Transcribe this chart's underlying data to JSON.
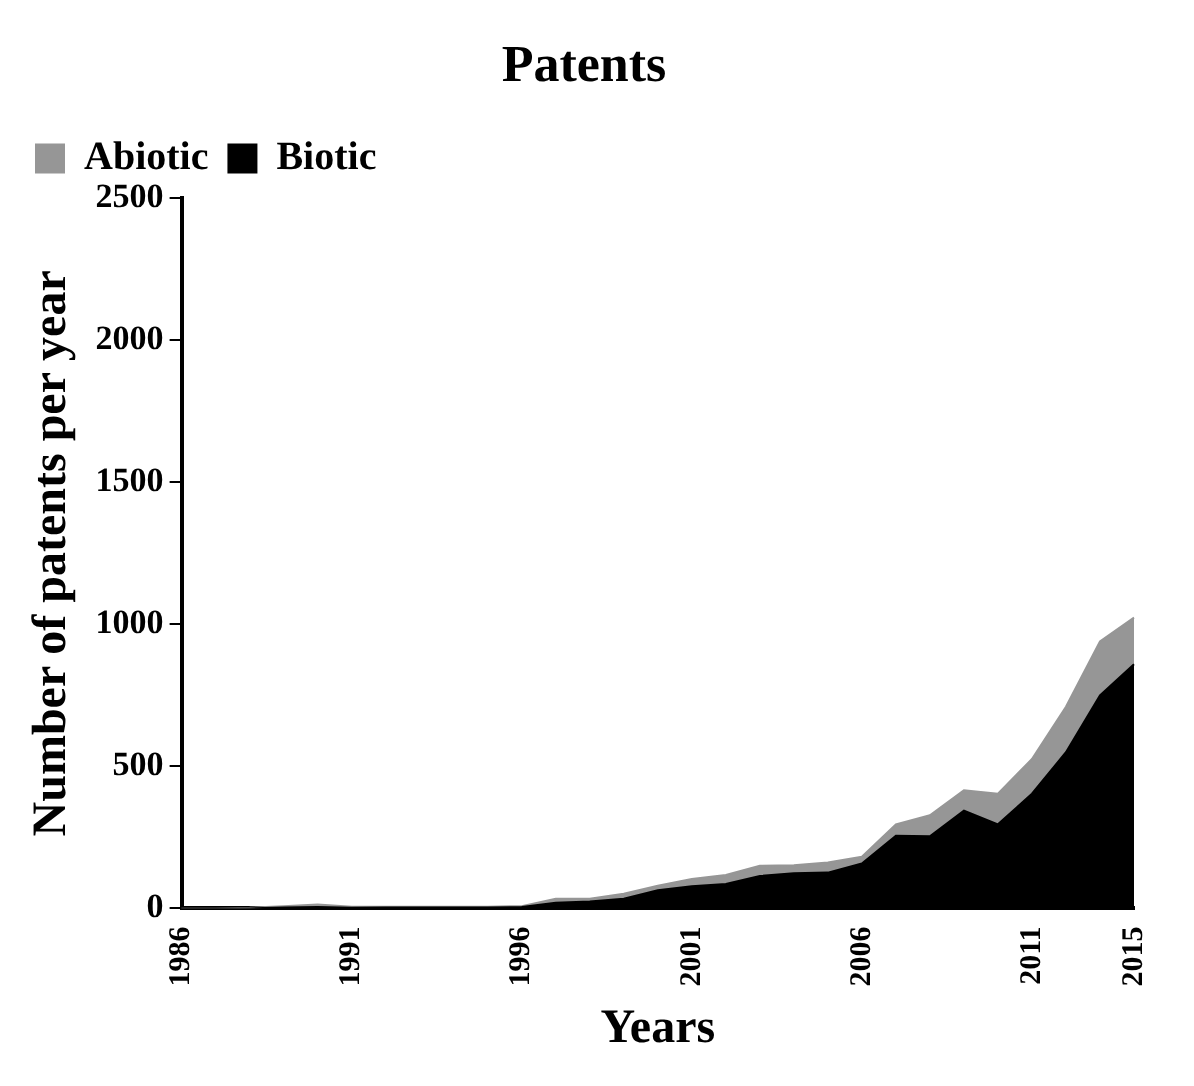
{
  "chart_data": {
    "type": "area",
    "stacked": true,
    "title": "Patents",
    "xlabel": "Years",
    "ylabel": "Number of patents per year",
    "categories": [
      "1986",
      null,
      null,
      null,
      null,
      "1991",
      null,
      null,
      null,
      null,
      "1996",
      null,
      null,
      null,
      null,
      "2001",
      null,
      null,
      null,
      null,
      "2006",
      null,
      null,
      null,
      null,
      "2011",
      null,
      null,
      "2015"
    ],
    "series": [
      {
        "name": "Biotic",
        "color": "#000000",
        "values": [
          0,
          0,
          0,
          3,
          5,
          2,
          3,
          3,
          3,
          3,
          5,
          20,
          24,
          34,
          64,
          78,
          86,
          114,
          124,
          126,
          158,
          256,
          254,
          344,
          296,
          404,
          550,
          750,
          860
        ]
      },
      {
        "name": "Abiotic",
        "color": "#969696",
        "values": [
          0,
          0,
          2,
          5,
          9,
          4,
          3,
          3,
          3,
          3,
          3,
          14,
          10,
          18,
          16,
          26,
          32,
          36,
          28,
          36,
          24,
          40,
          74,
          72,
          108,
          122,
          160,
          190,
          164
        ]
      }
    ],
    "ylim": [
      0,
      2500
    ],
    "yticks": [
      0,
      500,
      1000,
      1500,
      2000,
      2500
    ],
    "grid": false,
    "legend": "top left"
  }
}
